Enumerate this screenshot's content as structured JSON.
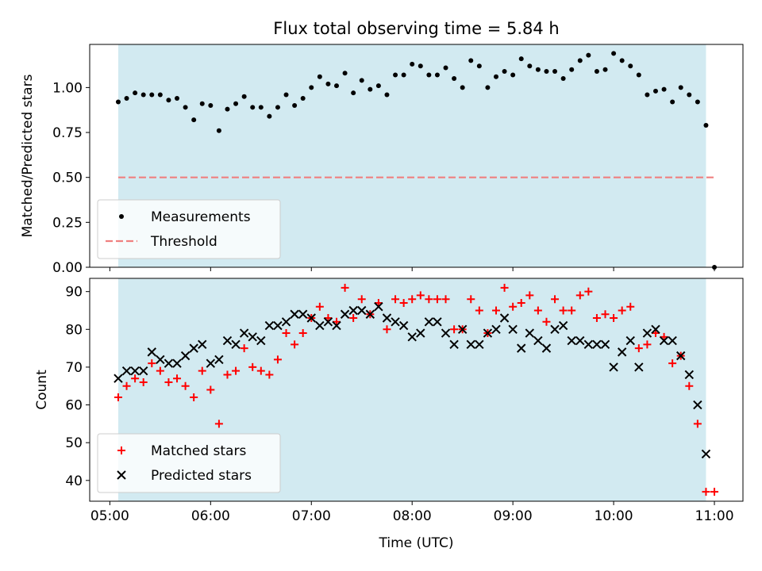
{
  "chart_data": [
    {
      "type": "scatter",
      "title": "Flux total observing time = 5.84 h",
      "xlabel": "",
      "ylabel": "Matched/Predicted stars",
      "x_ticks": [
        "05:00",
        "06:00",
        "07:00",
        "08:00",
        "09:00",
        "10:00",
        "11:00"
      ],
      "y_ticks": [
        "0.00",
        "0.25",
        "0.50",
        "0.75",
        "1.00"
      ],
      "xlim": [
        "04:48",
        "11:17"
      ],
      "ylim": [
        0,
        1.24
      ],
      "shaded_region": {
        "start": "05:05",
        "end": "10:55",
        "color": "#add8e6"
      },
      "grid": false,
      "legend_position": "lower-left",
      "series": [
        {
          "name": "Measurements",
          "marker": "dot",
          "color": "#000000",
          "points": [
            [
              "05:05",
              0.92
            ],
            [
              "05:10",
              0.94
            ],
            [
              "05:15",
              0.97
            ],
            [
              "05:20",
              0.96
            ],
            [
              "05:25",
              0.96
            ],
            [
              "05:30",
              0.96
            ],
            [
              "05:35",
              0.93
            ],
            [
              "05:40",
              0.94
            ],
            [
              "05:45",
              0.89
            ],
            [
              "05:50",
              0.82
            ],
            [
              "05:55",
              0.91
            ],
            [
              "06:00",
              0.9
            ],
            [
              "06:05",
              0.76
            ],
            [
              "06:10",
              0.88
            ],
            [
              "06:15",
              0.91
            ],
            [
              "06:20",
              0.95
            ],
            [
              "06:25",
              0.89
            ],
            [
              "06:30",
              0.89
            ],
            [
              "06:35",
              0.84
            ],
            [
              "06:40",
              0.89
            ],
            [
              "06:45",
              0.96
            ],
            [
              "06:50",
              0.9
            ],
            [
              "06:55",
              0.94
            ],
            [
              "07:00",
              1.0
            ],
            [
              "07:05",
              1.06
            ],
            [
              "07:10",
              1.02
            ],
            [
              "07:15",
              1.01
            ],
            [
              "07:20",
              1.08
            ],
            [
              "07:25",
              0.97
            ],
            [
              "07:30",
              1.04
            ],
            [
              "07:35",
              0.99
            ],
            [
              "07:40",
              1.01
            ],
            [
              "07:45",
              0.96
            ],
            [
              "07:50",
              1.07
            ],
            [
              "07:55",
              1.07
            ],
            [
              "08:00",
              1.13
            ],
            [
              "08:05",
              1.12
            ],
            [
              "08:10",
              1.07
            ],
            [
              "08:15",
              1.07
            ],
            [
              "08:20",
              1.11
            ],
            [
              "08:25",
              1.05
            ],
            [
              "08:30",
              1.0
            ],
            [
              "08:35",
              1.15
            ],
            [
              "08:40",
              1.12
            ],
            [
              "08:45",
              1.0
            ],
            [
              "08:50",
              1.06
            ],
            [
              "08:55",
              1.09
            ],
            [
              "09:00",
              1.07
            ],
            [
              "09:05",
              1.16
            ],
            [
              "09:10",
              1.12
            ],
            [
              "09:15",
              1.1
            ],
            [
              "09:20",
              1.09
            ],
            [
              "09:25",
              1.09
            ],
            [
              "09:30",
              1.05
            ],
            [
              "09:35",
              1.1
            ],
            [
              "09:40",
              1.15
            ],
            [
              "09:45",
              1.18
            ],
            [
              "09:50",
              1.09
            ],
            [
              "09:55",
              1.1
            ],
            [
              "10:00",
              1.19
            ],
            [
              "10:05",
              1.15
            ],
            [
              "10:10",
              1.12
            ],
            [
              "10:15",
              1.07
            ],
            [
              "10:20",
              0.96
            ],
            [
              "10:25",
              0.98
            ],
            [
              "10:30",
              0.99
            ],
            [
              "10:35",
              0.92
            ],
            [
              "10:40",
              1.0
            ],
            [
              "10:45",
              0.96
            ],
            [
              "10:50",
              0.92
            ],
            [
              "10:55",
              0.79
            ],
            [
              "11:00",
              0.0
            ]
          ]
        },
        {
          "name": "Threshold",
          "style": "dashed",
          "color": "#f08080",
          "points": [
            [
              "05:05",
              0.5
            ],
            [
              "11:00",
              0.5
            ]
          ]
        }
      ]
    },
    {
      "type": "scatter",
      "title": "",
      "xlabel": "Time (UTC)",
      "ylabel": "Count",
      "x_ticks": [
        "05:00",
        "06:00",
        "07:00",
        "08:00",
        "09:00",
        "10:00",
        "11:00"
      ],
      "y_ticks": [
        "40",
        "50",
        "60",
        "70",
        "80",
        "90"
      ],
      "xlim": [
        "04:48",
        "11:17"
      ],
      "ylim": [
        34.5,
        93.5
      ],
      "shaded_region": {
        "start": "05:05",
        "end": "10:55",
        "color": "#add8e6"
      },
      "grid": false,
      "legend_position": "lower-left",
      "series": [
        {
          "name": "Matched stars",
          "marker": "plus",
          "color": "#ff0000",
          "points": [
            [
              "05:05",
              62
            ],
            [
              "05:10",
              65
            ],
            [
              "05:15",
              67
            ],
            [
              "05:20",
              66
            ],
            [
              "05:25",
              71
            ],
            [
              "05:30",
              69
            ],
            [
              "05:35",
              66
            ],
            [
              "05:40",
              67
            ],
            [
              "05:45",
              65
            ],
            [
              "05:50",
              62
            ],
            [
              "05:55",
              69
            ],
            [
              "06:00",
              64
            ],
            [
              "06:05",
              55
            ],
            [
              "06:10",
              68
            ],
            [
              "06:15",
              69
            ],
            [
              "06:20",
              75
            ],
            [
              "06:25",
              70
            ],
            [
              "06:30",
              69
            ],
            [
              "06:35",
              68
            ],
            [
              "06:40",
              72
            ],
            [
              "06:45",
              79
            ],
            [
              "06:50",
              76
            ],
            [
              "06:55",
              79
            ],
            [
              "07:00",
              83
            ],
            [
              "07:05",
              86
            ],
            [
              "07:10",
              83
            ],
            [
              "07:15",
              82
            ],
            [
              "07:20",
              91
            ],
            [
              "07:25",
              83
            ],
            [
              "07:30",
              88
            ],
            [
              "07:35",
              84
            ],
            [
              "07:40",
              87
            ],
            [
              "07:45",
              80
            ],
            [
              "07:50",
              88
            ],
            [
              "07:55",
              87
            ],
            [
              "08:00",
              88
            ],
            [
              "08:05",
              89
            ],
            [
              "08:10",
              88
            ],
            [
              "08:15",
              88
            ],
            [
              "08:20",
              88
            ],
            [
              "08:25",
              80
            ],
            [
              "08:30",
              80
            ],
            [
              "08:35",
              88
            ],
            [
              "08:40",
              85
            ],
            [
              "08:45",
              79
            ],
            [
              "08:50",
              85
            ],
            [
              "08:55",
              91
            ],
            [
              "09:00",
              86
            ],
            [
              "09:05",
              87
            ],
            [
              "09:10",
              89
            ],
            [
              "09:15",
              85
            ],
            [
              "09:20",
              82
            ],
            [
              "09:25",
              88
            ],
            [
              "09:30",
              85
            ],
            [
              "09:35",
              85
            ],
            [
              "09:40",
              89
            ],
            [
              "09:45",
              90
            ],
            [
              "09:50",
              83
            ],
            [
              "09:55",
              84
            ],
            [
              "10:00",
              83
            ],
            [
              "10:05",
              85
            ],
            [
              "10:10",
              86
            ],
            [
              "10:15",
              75
            ],
            [
              "10:20",
              76
            ],
            [
              "10:25",
              79
            ],
            [
              "10:30",
              78
            ],
            [
              "10:35",
              71
            ],
            [
              "10:40",
              73
            ],
            [
              "10:45",
              65
            ],
            [
              "10:50",
              55
            ],
            [
              "10:55",
              37
            ],
            [
              "11:00",
              37
            ]
          ]
        },
        {
          "name": "Predicted stars",
          "marker": "x",
          "color": "#000000",
          "points": [
            [
              "05:05",
              67
            ],
            [
              "05:10",
              69
            ],
            [
              "05:15",
              69
            ],
            [
              "05:20",
              69
            ],
            [
              "05:25",
              74
            ],
            [
              "05:30",
              72
            ],
            [
              "05:35",
              71
            ],
            [
              "05:40",
              71
            ],
            [
              "05:45",
              73
            ],
            [
              "05:50",
              75
            ],
            [
              "05:55",
              76
            ],
            [
              "06:00",
              71
            ],
            [
              "06:05",
              72
            ],
            [
              "06:10",
              77
            ],
            [
              "06:15",
              76
            ],
            [
              "06:20",
              79
            ],
            [
              "06:25",
              78
            ],
            [
              "06:30",
              77
            ],
            [
              "06:35",
              81
            ],
            [
              "06:40",
              81
            ],
            [
              "06:45",
              82
            ],
            [
              "06:50",
              84
            ],
            [
              "06:55",
              84
            ],
            [
              "07:00",
              83
            ],
            [
              "07:05",
              81
            ],
            [
              "07:10",
              82
            ],
            [
              "07:15",
              81
            ],
            [
              "07:20",
              84
            ],
            [
              "07:25",
              85
            ],
            [
              "07:30",
              85
            ],
            [
              "07:35",
              84
            ],
            [
              "07:40",
              86
            ],
            [
              "07:45",
              83
            ],
            [
              "07:50",
              82
            ],
            [
              "07:55",
              81
            ],
            [
              "08:00",
              78
            ],
            [
              "08:05",
              79
            ],
            [
              "08:10",
              82
            ],
            [
              "08:15",
              82
            ],
            [
              "08:20",
              79
            ],
            [
              "08:25",
              76
            ],
            [
              "08:30",
              80
            ],
            [
              "08:35",
              76
            ],
            [
              "08:40",
              76
            ],
            [
              "08:45",
              79
            ],
            [
              "08:50",
              80
            ],
            [
              "08:55",
              83
            ],
            [
              "09:00",
              80
            ],
            [
              "09:05",
              75
            ],
            [
              "09:10",
              79
            ],
            [
              "09:15",
              77
            ],
            [
              "09:20",
              75
            ],
            [
              "09:25",
              80
            ],
            [
              "09:30",
              81
            ],
            [
              "09:35",
              77
            ],
            [
              "09:40",
              77
            ],
            [
              "09:45",
              76
            ],
            [
              "09:50",
              76
            ],
            [
              "09:55",
              76
            ],
            [
              "10:00",
              70
            ],
            [
              "10:05",
              74
            ],
            [
              "10:10",
              77
            ],
            [
              "10:15",
              70
            ],
            [
              "10:20",
              79
            ],
            [
              "10:25",
              80
            ],
            [
              "10:30",
              77
            ],
            [
              "10:35",
              77
            ],
            [
              "10:40",
              73
            ],
            [
              "10:45",
              68
            ],
            [
              "10:50",
              60
            ],
            [
              "10:55",
              47
            ]
          ]
        }
      ]
    }
  ]
}
